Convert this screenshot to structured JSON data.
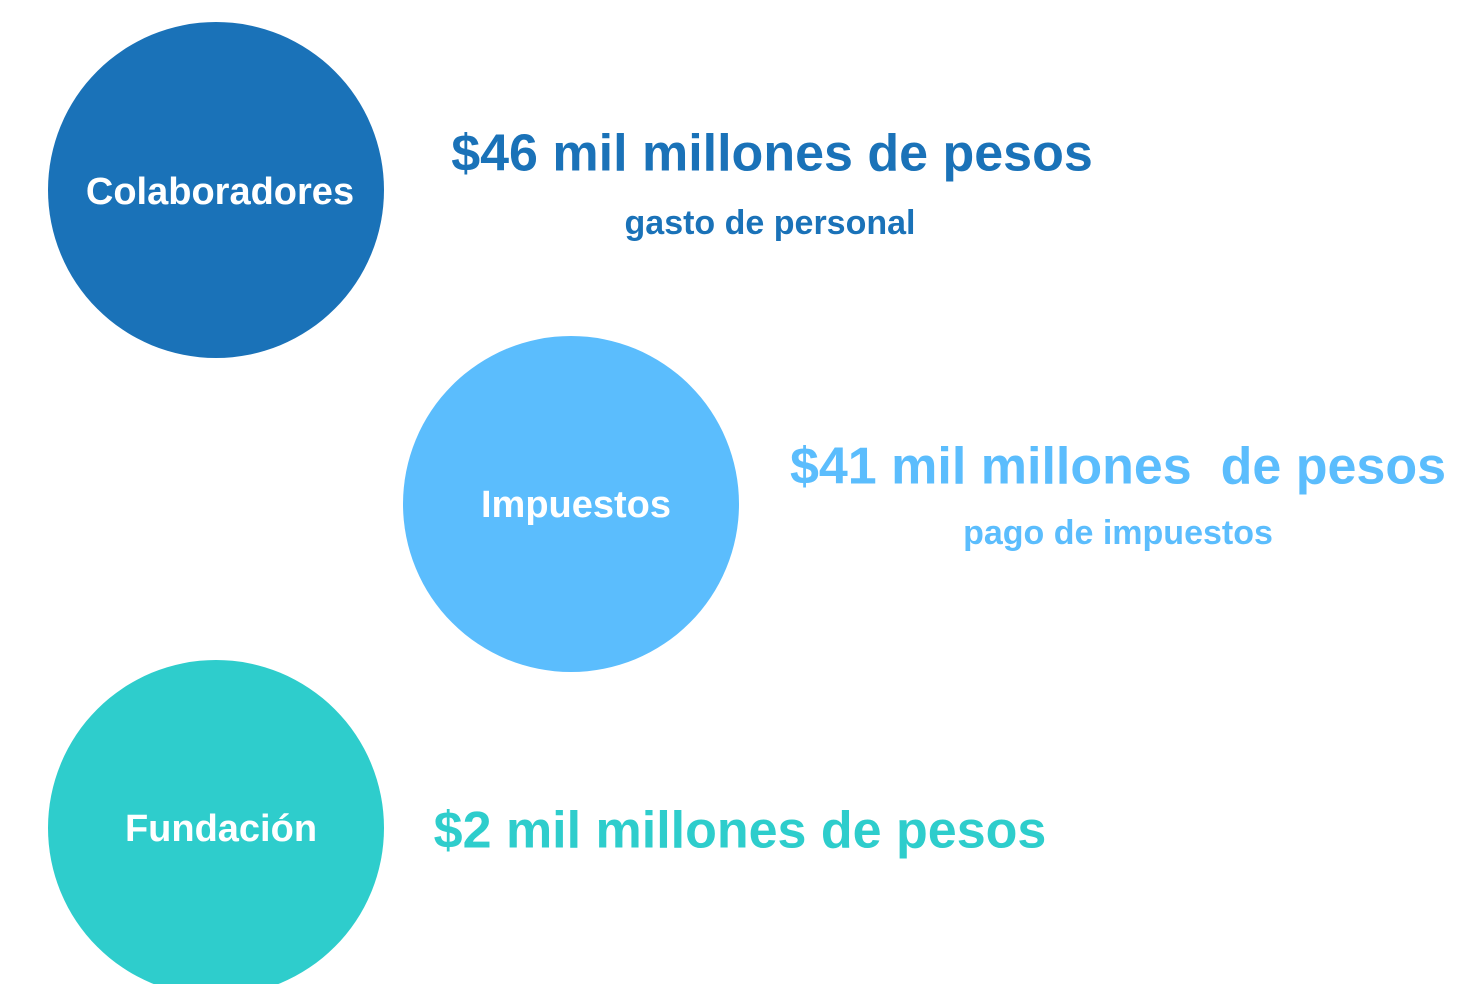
{
  "items": [
    {
      "label": "Colaboradores",
      "amount": "$46 mil millones de pesos",
      "description": "gasto de personal"
    },
    {
      "label": "Impuestos",
      "amount": "$41 mil millones  de pesos",
      "description": "pago de impuestos"
    },
    {
      "label": "Fundación",
      "amount": "$2 mil millones de pesos"
    }
  ]
}
